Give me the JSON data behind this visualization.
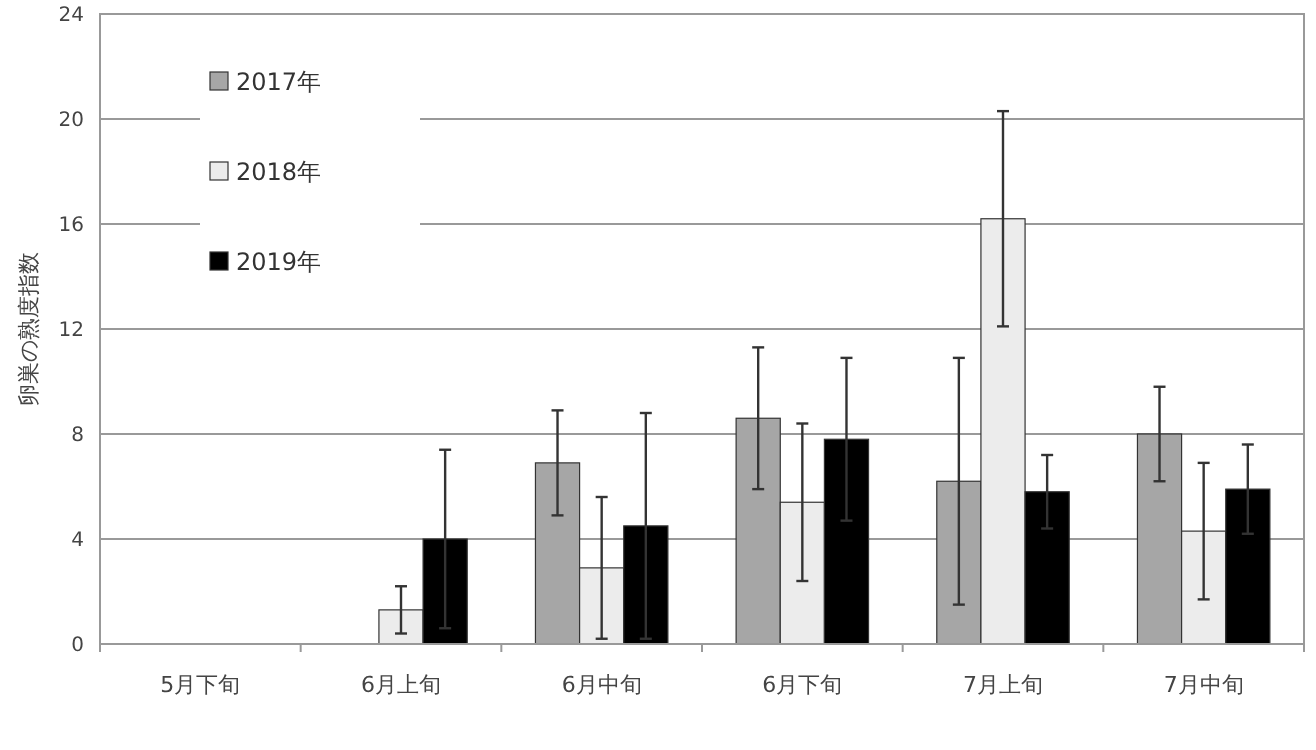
{
  "chart_data": {
    "type": "bar",
    "ylabel": "卵巣の熟度指数",
    "categories": [
      "5月下旬",
      "6月上旬",
      "6月中旬",
      "6月下旬",
      "7月上旬",
      "7月中旬"
    ],
    "series": [
      {
        "name": "2017年",
        "color": "#a6a6a6",
        "values": [
          0,
          0,
          6.9,
          8.6,
          6.2,
          8.0
        ],
        "errors": [
          null,
          null,
          2.0,
          2.7,
          4.7,
          1.8
        ]
      },
      {
        "name": "2018年",
        "color": "#ececec",
        "values": [
          0,
          1.3,
          2.9,
          5.4,
          16.2,
          4.3
        ],
        "errors": [
          null,
          0.9,
          2.7,
          3.0,
          4.1,
          2.6
        ]
      },
      {
        "name": "2019年",
        "color": "#000000",
        "values": [
          0,
          4.0,
          4.5,
          7.8,
          5.8,
          5.9
        ],
        "errors": [
          null,
          3.4,
          4.3,
          3.1,
          1.4,
          1.7
        ]
      }
    ],
    "ylim": [
      0,
      24
    ],
    "yticks": [
      0,
      4,
      8,
      12,
      16,
      20,
      24
    ],
    "grid": "y",
    "legend": "top left"
  }
}
